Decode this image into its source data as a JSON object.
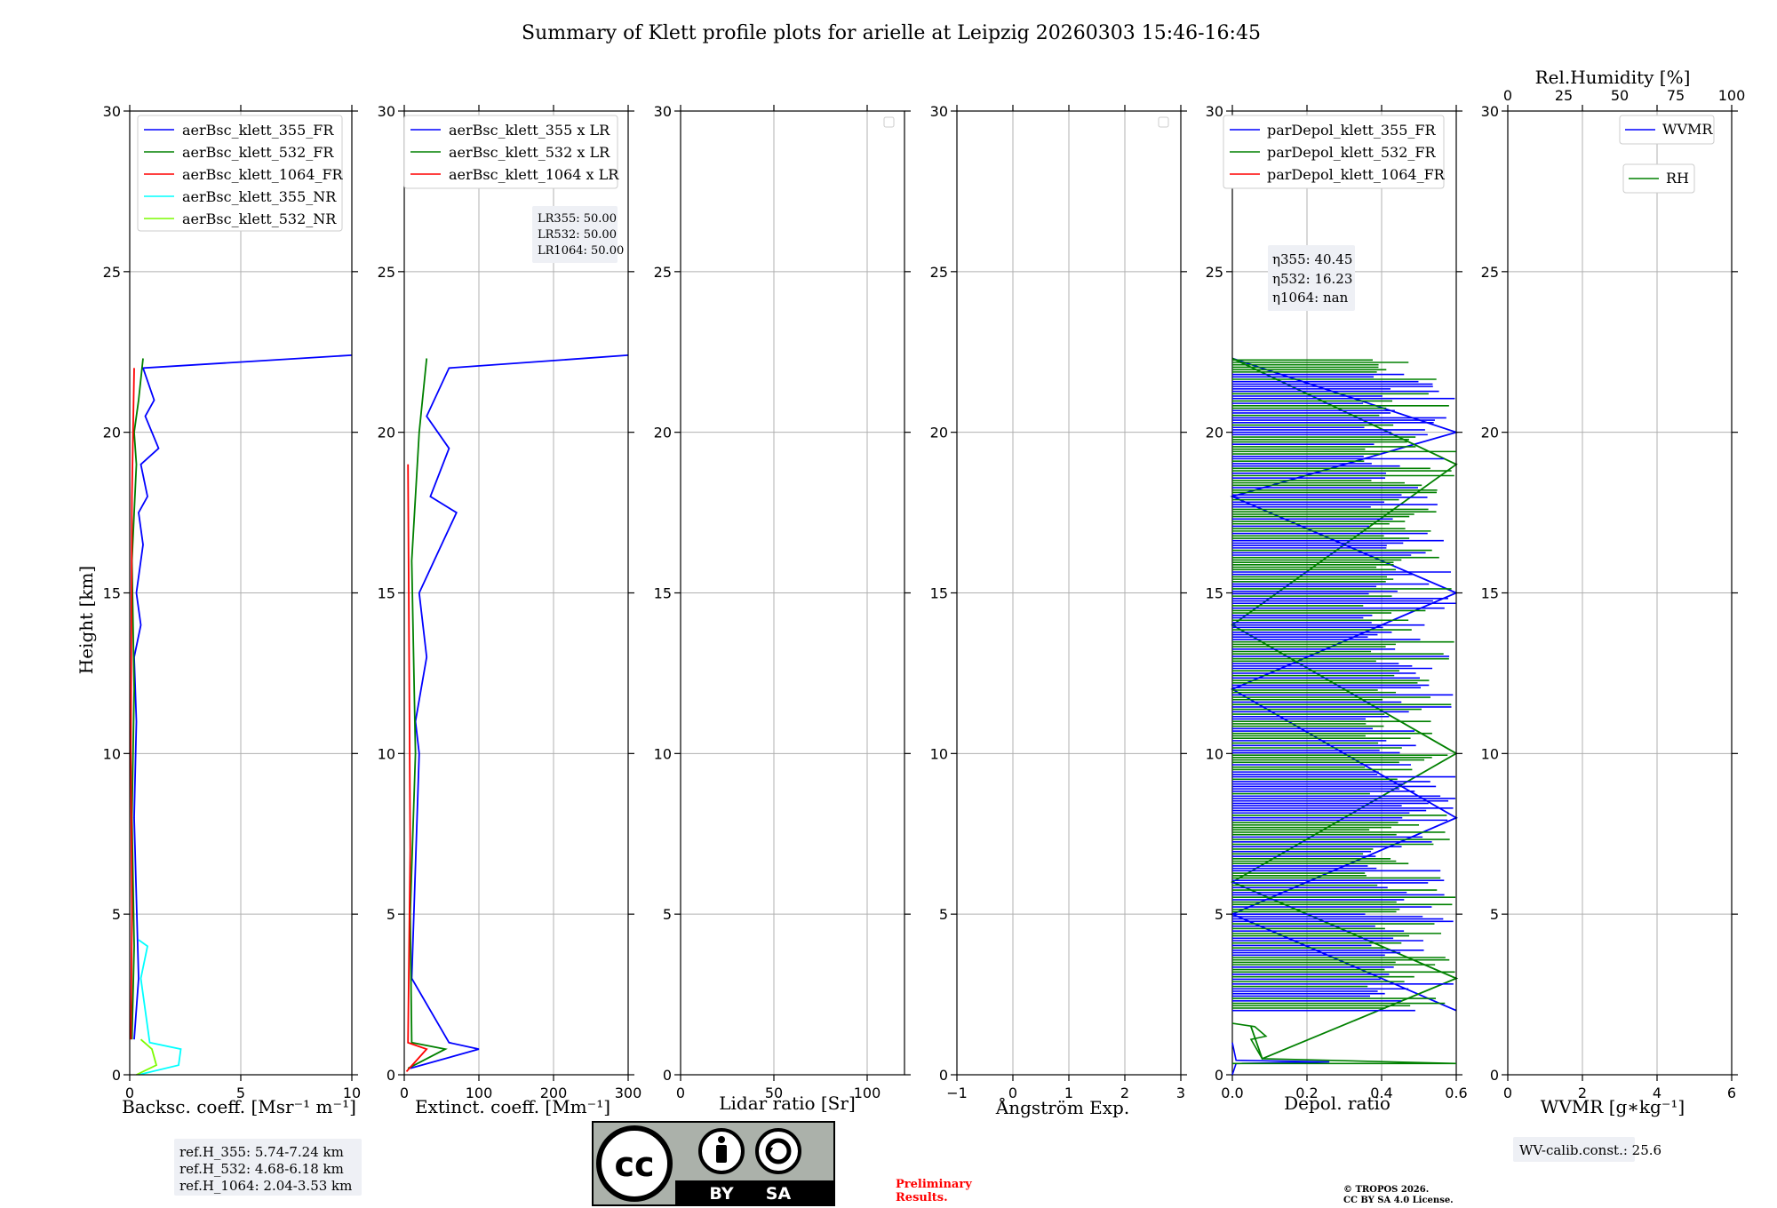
{
  "title": "Summary of Klett profile plots for arielle at Leipzig 20260303 15:46-16:45",
  "ylabel": "Height [km]",
  "colors": {
    "c355": "#0000ff",
    "c532": "#008000",
    "c1064": "#ff0000",
    "c355nr": "#00ffff",
    "c532nr": "#7cfc00"
  },
  "panels": [
    {
      "xlabel": "Backsc. coeff. [Msr⁻¹ m⁻¹]",
      "xticks": [
        "0",
        "5",
        "10"
      ],
      "legend": [
        "aerBsc_klett_355_FR",
        "aerBsc_klett_532_FR",
        "aerBsc_klett_1064_FR",
        "aerBsc_klett_355_NR",
        "aerBsc_klett_532_NR"
      ]
    },
    {
      "xlabel": "Extinct. coeff. [Mm⁻¹]",
      "xticks": [
        "0",
        "100",
        "200",
        "300"
      ],
      "legend": [
        "aerBsc_klett_355 x LR",
        "aerBsc_klett_532 x LR",
        "aerBsc_klett_1064 x LR"
      ]
    },
    {
      "xlabel": "Lidar ratio [Sr]",
      "xticks": [
        "0",
        "50",
        "100"
      ]
    },
    {
      "xlabel": "Ångström Exp.",
      "xticks": [
        "−1",
        "0",
        "1",
        "2",
        "3"
      ]
    },
    {
      "xlabel": "Depol. ratio",
      "xticks": [
        "0.0",
        "0.2",
        "0.4",
        "0.6"
      ],
      "legend": [
        "parDepol_klett_355_FR",
        "parDepol_klett_532_FR",
        "parDepol_klett_1064_FR"
      ]
    },
    {
      "xlabel": "WVMR [g∗kg⁻¹]",
      "xticks": [
        "0",
        "2",
        "4",
        "6"
      ],
      "top_label": "Rel.Humidity [%]",
      "top_ticks": [
        "0",
        "25",
        "50",
        "75",
        "100"
      ],
      "legend": [
        "WVMR",
        "RH"
      ]
    }
  ],
  "yticks": [
    "0",
    "5",
    "10",
    "15",
    "20",
    "25",
    "30"
  ],
  "lr_box": {
    "l1": "LR355: 50.00",
    "l2": "LR532: 50.00",
    "l3": "LR1064: 50.00"
  },
  "eta_box": {
    "l1": "η355: 40.45",
    "l2": "η532: 16.23",
    "l3": "η1064: nan"
  },
  "ref_box": {
    "l1": "ref.H_355: 5.74-7.24 km",
    "l2": "ref.H_532: 4.68-6.18 km",
    "l3": "ref.H_1064: 2.04-3.53 km"
  },
  "wv_calib": "WV-calib.const.: 25.6",
  "license": {
    "by": "BY",
    "sa": "SA"
  },
  "preliminary": {
    "l1": "Preliminary",
    "l2": "Results."
  },
  "copyright": {
    "l1": "© TROPOS 2026.",
    "l2": "CC BY SA 4.0 License."
  },
  "chart_data": [
    {
      "type": "line",
      "xlabel": "Backsc. coeff. [Msr⁻¹ m⁻¹]",
      "ylabel": "Height [km]",
      "xlim": [
        0,
        10
      ],
      "ylim": [
        0,
        30
      ],
      "series": [
        {
          "name": "aerBsc_klett_355_FR",
          "x": [
            0.2,
            0.4,
            0.3,
            0.2,
            0.3,
            0.2,
            0.5,
            0.3,
            0.6,
            0.4,
            0.8,
            0.5,
            1.3,
            0.7,
            1.1,
            0.6,
            10.0
          ],
          "y": [
            1.1,
            3.0,
            5.5,
            8.0,
            11.0,
            13.0,
            14.0,
            15.0,
            16.5,
            17.5,
            18.0,
            19.0,
            19.5,
            20.5,
            21.0,
            22.0,
            22.4
          ]
        },
        {
          "name": "aerBsc_klett_532_FR",
          "x": [
            0.1,
            0.2,
            0.1,
            0.2,
            0.1,
            0.3,
            0.2,
            0.4,
            0.6
          ],
          "y": [
            1.1,
            4.0,
            8.0,
            12.0,
            16.0,
            19.0,
            20.0,
            21.0,
            22.3
          ]
        },
        {
          "name": "aerBsc_klett_1064_FR",
          "x": [
            0.05,
            0.1,
            0.05,
            0.1,
            0.2
          ],
          "y": [
            1.1,
            5.0,
            10.0,
            18.0,
            22.0
          ]
        },
        {
          "name": "aerBsc_klett_355_NR",
          "x": [
            0.4,
            2.2,
            2.3,
            0.9,
            0.5,
            0.8,
            0.4
          ],
          "y": [
            0.0,
            0.3,
            0.8,
            1.0,
            3.0,
            4.0,
            4.2
          ]
        },
        {
          "name": "aerBsc_klett_532_NR",
          "x": [
            0.3,
            1.2,
            1.0,
            0.5
          ],
          "y": [
            0.0,
            0.3,
            0.8,
            1.1
          ]
        }
      ]
    },
    {
      "type": "line",
      "xlabel": "Extinct. coeff. [Mm⁻¹]",
      "ylabel": "Height [km]",
      "xlim": [
        0,
        300
      ],
      "ylim": [
        0,
        30
      ],
      "series": [
        {
          "name": "aerBsc_klett_355 x LR",
          "x": [
            8,
            100,
            60,
            10,
            20,
            15,
            30,
            20,
            40,
            70,
            35,
            60,
            30,
            60,
            300
          ],
          "y": [
            0.2,
            0.8,
            1.0,
            3.0,
            10.0,
            11.0,
            13.0,
            15.0,
            16.0,
            17.5,
            18.0,
            19.5,
            20.5,
            22.0,
            22.4
          ]
        },
        {
          "name": "aerBsc_klett_532 x LR",
          "x": [
            5,
            55,
            10,
            8,
            15,
            10,
            20,
            30
          ],
          "y": [
            0.2,
            0.8,
            1.0,
            5.0,
            10.0,
            16.0,
            20.0,
            22.3
          ]
        },
        {
          "name": "aerBsc_klett_1064 x LR",
          "x": [
            3,
            30,
            5,
            8,
            5
          ],
          "y": [
            0.1,
            0.8,
            1.0,
            7.0,
            19.0
          ]
        }
      ]
    },
    {
      "type": "line",
      "xlabel": "Lidar ratio [Sr]",
      "xlim": [
        0,
        120
      ],
      "ylim": [
        0,
        30
      ],
      "series": []
    },
    {
      "type": "line",
      "xlabel": "Ångström Exp.",
      "xlim": [
        -1,
        3
      ],
      "ylim": [
        0,
        30
      ],
      "series": []
    },
    {
      "type": "line",
      "xlabel": "Depol. ratio",
      "xlim": [
        0.0,
        0.6
      ],
      "ylim": [
        0,
        30
      ],
      "series": [
        {
          "name": "parDepol_klett_355_FR",
          "x": [
            0.6,
            0.0,
            0.6,
            0.0,
            0.6,
            0.0,
            0.6,
            0.0
          ],
          "y": [
            2.0,
            5.0,
            8.0,
            12.0,
            15.0,
            18.0,
            20.0,
            22.3
          ]
        },
        {
          "name": "parDepol_klett_532_FR",
          "x": [
            0.05,
            0.08,
            0.6,
            0.0,
            0.6,
            0.0,
            0.6,
            0.0
          ],
          "y": [
            1.5,
            0.5,
            3.0,
            6.0,
            10.0,
            14.0,
            19.0,
            22.3
          ]
        },
        {
          "name": "parDepol_klett_1064_FR",
          "x": [],
          "y": []
        }
      ]
    },
    {
      "type": "line",
      "xlabel": "WVMR [g∗kg⁻¹]",
      "xlim": [
        0,
        6
      ],
      "ylim": [
        0,
        30
      ],
      "top_xlabel": "Rel.Humidity [%]",
      "top_xlim": [
        0,
        100
      ],
      "series": [
        {
          "name": "WVMR",
          "x": [],
          "y": []
        },
        {
          "name": "RH",
          "x": [],
          "y": []
        }
      ]
    }
  ]
}
